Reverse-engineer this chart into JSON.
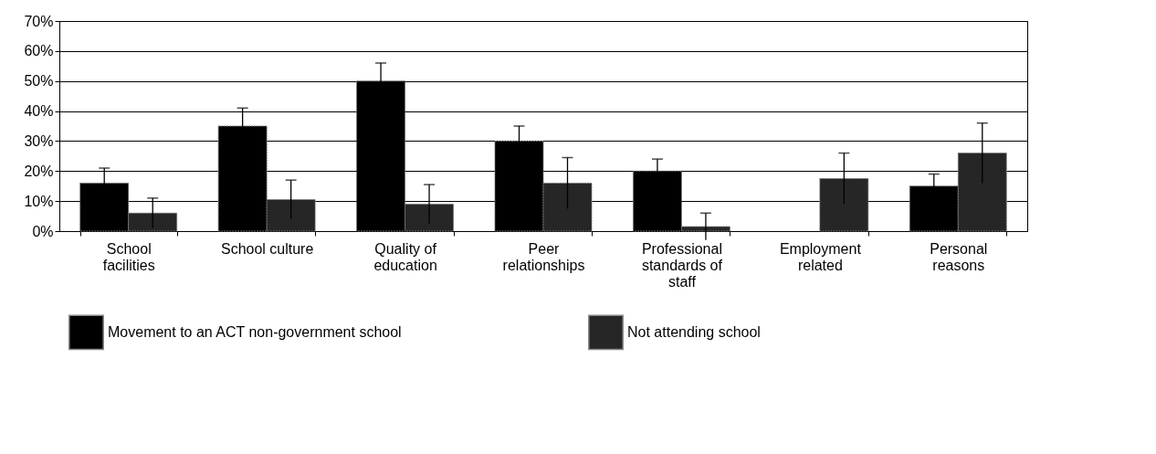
{
  "chart_data": {
    "type": "bar",
    "categories": [
      "School facilities",
      "School culture",
      "Quality of education",
      "Peer relationships",
      "Professional standards of staff",
      "Employment related",
      "Personal reasons"
    ],
    "series": [
      {
        "name": "Movement to an ACT non-government school",
        "color": "#000000",
        "values": [
          16,
          35,
          50,
          30,
          20,
          null,
          15
        ],
        "errors": [
          5,
          6,
          6,
          5,
          4,
          null,
          4
        ]
      },
      {
        "name": "Not attending school",
        "color": "#262626",
        "values": [
          6,
          10.5,
          9,
          16,
          1.5,
          17.5,
          26
        ],
        "errors": [
          5,
          6.5,
          6.5,
          8.5,
          4.5,
          8.5,
          10
        ]
      }
    ],
    "ylim": [
      0,
      70
    ],
    "yticks": [
      {
        "value": 0,
        "label": "0%"
      },
      {
        "value": 10,
        "label": "10%"
      },
      {
        "value": 20,
        "label": "20%"
      },
      {
        "value": 30,
        "label": "30%"
      },
      {
        "value": 40,
        "label": "40%"
      },
      {
        "value": 50,
        "label": "50%"
      },
      {
        "value": 60,
        "label": "60%"
      },
      {
        "value": 70,
        "label": "70%"
      }
    ],
    "grid": "y",
    "legend": "bottom"
  }
}
